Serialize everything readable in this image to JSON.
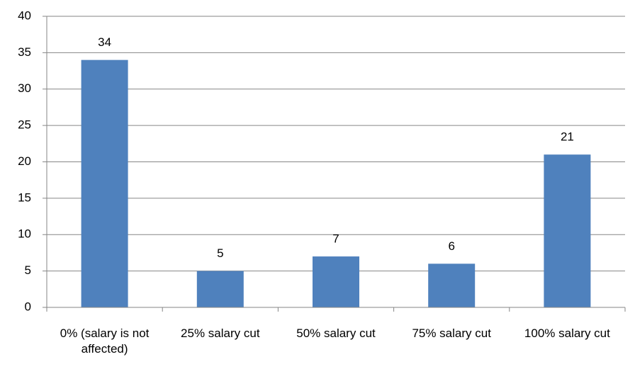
{
  "chart_data": {
    "type": "bar",
    "categories": [
      "0% (salary is not affected)",
      "25% salary cut",
      "50% salary cut",
      "75% salary cut",
      "100% salary cut"
    ],
    "values": [
      34,
      5,
      7,
      6,
      21
    ],
    "color": "#4f81bd",
    "ylim": [
      0,
      40
    ],
    "yticks": [
      0,
      5,
      10,
      15,
      20,
      25,
      30,
      35,
      40
    ],
    "grid": true,
    "data_labels": true
  }
}
